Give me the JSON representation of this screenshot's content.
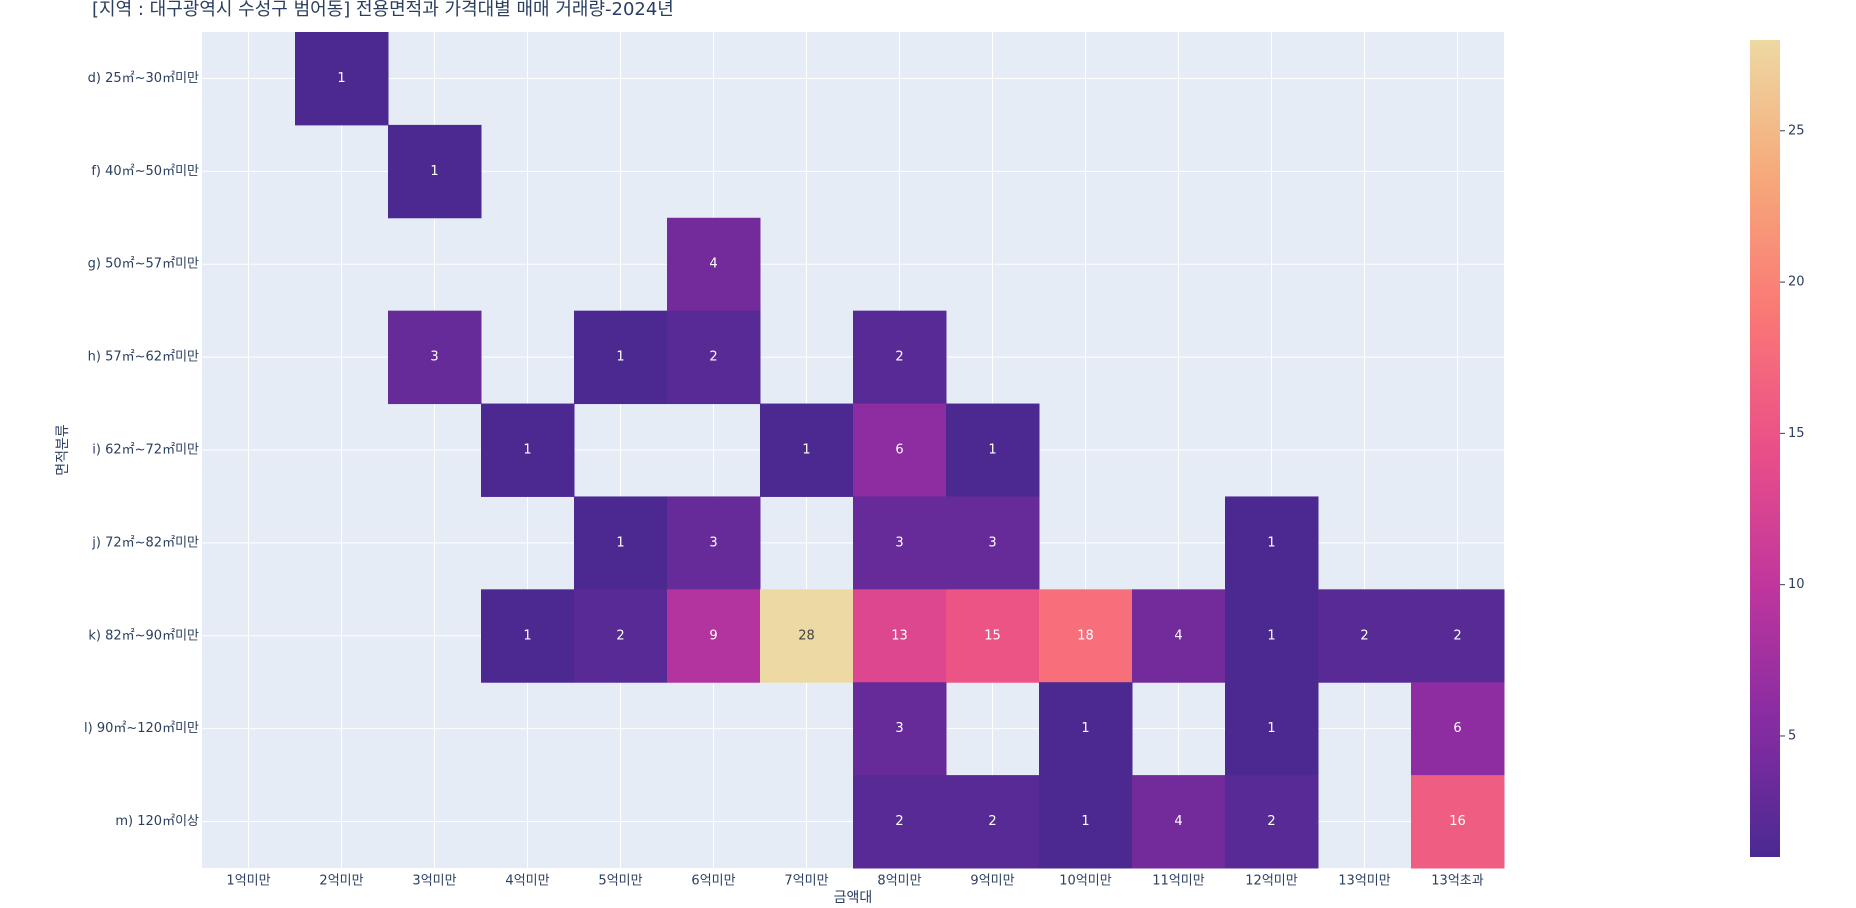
{
  "chart_data": {
    "type": "heatmap",
    "title": "[지역 : 대구광역시 수성구 범어동] 전용면적과 가격대별 매매 거래량-2024년",
    "x_label": "금액대",
    "y_label": "면적분류",
    "categories": [
      "1억미만",
      "2억미만",
      "3억미만",
      "4억미만",
      "5억미만",
      "6억미만",
      "7억미만",
      "8억미만",
      "9억미만",
      "10억미만",
      "11억미만",
      "12억미만",
      "13억미만",
      "13억초과"
    ],
    "rows": [
      "d) 25㎡~30㎡미만",
      "f) 40㎡~50㎡미만",
      "g) 50㎡~57㎡미만",
      "h) 57㎡~62㎡미만",
      "i) 62㎡~72㎡미만",
      "j) 72㎡~82㎡미만",
      "k) 82㎡~90㎡미만",
      "l) 90㎡~120㎡미만",
      "m) 120㎡이상"
    ],
    "z": [
      [
        null,
        1,
        null,
        null,
        null,
        null,
        null,
        null,
        null,
        null,
        null,
        null,
        null,
        null
      ],
      [
        null,
        null,
        1,
        null,
        null,
        null,
        null,
        null,
        null,
        null,
        null,
        null,
        null,
        null
      ],
      [
        null,
        null,
        null,
        null,
        null,
        4,
        null,
        null,
        null,
        null,
        null,
        null,
        null,
        null
      ],
      [
        null,
        null,
        3,
        null,
        1,
        2,
        null,
        2,
        null,
        null,
        null,
        null,
        null,
        null
      ],
      [
        null,
        null,
        null,
        1,
        null,
        null,
        1,
        6,
        1,
        null,
        null,
        null,
        null,
        null
      ],
      [
        null,
        null,
        null,
        null,
        1,
        3,
        null,
        3,
        3,
        null,
        null,
        1,
        null,
        null
      ],
      [
        null,
        null,
        null,
        1,
        2,
        9,
        28,
        13,
        15,
        18,
        4,
        1,
        2,
        2
      ],
      [
        null,
        null,
        null,
        null,
        null,
        null,
        null,
        3,
        null,
        1,
        null,
        1,
        null,
        6
      ],
      [
        null,
        null,
        null,
        null,
        null,
        null,
        null,
        2,
        2,
        1,
        4,
        2,
        null,
        16
      ]
    ],
    "zlim": [
      1,
      28
    ],
    "colorscale": [
      "#4b2991",
      "#872ca2",
      "#c0369d",
      "#ea4f88",
      "#fa7876",
      "#f6a97a",
      "#edd9a3"
    ],
    "colorbar_ticks": [
      5,
      10,
      15,
      20,
      25
    ],
    "grid": true
  }
}
